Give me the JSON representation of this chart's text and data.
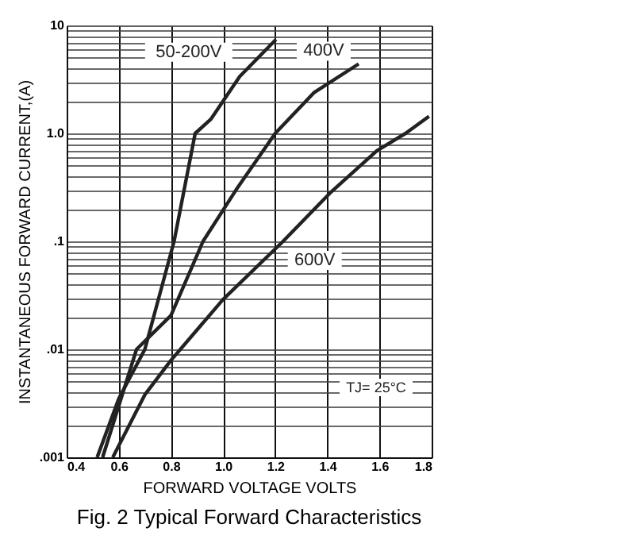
{
  "chart_data": {
    "type": "line",
    "title": "Fig. 2  Typical Forward Characteristics",
    "xlabel": "FORWARD VOLTAGE VOLTS",
    "ylabel": "INSTANTANEOUS FORWARD CURRENT,(A)",
    "series": [
      {
        "name": "50-200V",
        "color": "#222222",
        "x": [
          0.517,
          0.6,
          0.7,
          0.812,
          0.893,
          0.954,
          1.064,
          1.203
        ],
        "values": [
          0.001,
          0.0035,
          0.01,
          0.1,
          1.0,
          1.36,
          3.37,
          7.4
        ]
      },
      {
        "name": "400V",
        "color": "#222222",
        "x": [
          0.538,
          0.668,
          0.8,
          0.923,
          1.05,
          1.2,
          1.35,
          1.52
        ],
        "values": [
          0.001,
          0.01,
          0.0206,
          0.1,
          0.3,
          1.0,
          2.4,
          4.4
        ]
      },
      {
        "name": "600V",
        "color": "#222222",
        "x": [
          0.577,
          0.7,
          0.8,
          1.0,
          1.23,
          1.41,
          1.59,
          1.7,
          1.79
        ],
        "values": [
          0.001,
          0.0038,
          0.0079,
          0.029,
          0.1,
          0.28,
          0.69,
          1.0,
          1.44
        ]
      }
    ],
    "annotations": [
      "TJ= 25°C"
    ],
    "log": "y",
    "grid": true,
    "marker": "none",
    "line_style": "solid",
    "xlim": [
      0.4,
      1.8
    ],
    "xticks": [
      0.4,
      0.6,
      0.8,
      {
        "value": 1,
        "label": "1.0"
      },
      1.2,
      1.4,
      1.6,
      1.8
    ],
    "ylim": [
      0.001,
      10
    ],
    "yticks": [
      {
        "value": 0.001,
        "label": ".001"
      },
      {
        "value": 0.002,
        "label": null
      },
      {
        "value": 0.003,
        "label": null
      },
      {
        "value": 0.004,
        "label": null
      },
      {
        "value": 0.005,
        "label": null
      },
      {
        "value": 0.006,
        "label": null
      },
      {
        "value": 0.007,
        "label": null
      },
      {
        "value": 0.008,
        "label": null
      },
      {
        "value": 0.009,
        "label": null
      },
      {
        "value": 0.01,
        "label": ".01"
      },
      {
        "value": 0.02,
        "label": null
      },
      {
        "value": 0.03,
        "label": null
      },
      {
        "value": 0.04,
        "label": null
      },
      {
        "value": 0.05,
        "label": null
      },
      {
        "value": 0.06,
        "label": null
      },
      {
        "value": 0.07,
        "label": null
      },
      {
        "value": 0.08,
        "label": null
      },
      {
        "value": 0.09,
        "label": null
      },
      {
        "value": 0.1,
        "label": ".1"
      },
      {
        "value": 0.2,
        "label": null
      },
      {
        "value": 0.3,
        "label": null
      },
      {
        "value": 0.4,
        "label": null
      },
      {
        "value": 0.5,
        "label": null
      },
      {
        "value": 0.6,
        "label": null
      },
      {
        "value": 0.7,
        "label": null
      },
      {
        "value": 0.8,
        "label": null
      },
      {
        "value": 0.9,
        "label": null
      },
      {
        "value": 1,
        "label": "1.0"
      },
      {
        "value": 2,
        "label": null
      },
      {
        "value": 3,
        "label": null
      },
      {
        "value": 4,
        "label": null
      },
      {
        "value": 5,
        "label": null
      },
      {
        "value": 6,
        "label": null
      },
      {
        "value": 7,
        "label": null
      },
      {
        "value": 8,
        "label": null
      },
      {
        "value": 9,
        "label": null
      },
      {
        "value": 10,
        "label": "10"
      }
    ]
  }
}
